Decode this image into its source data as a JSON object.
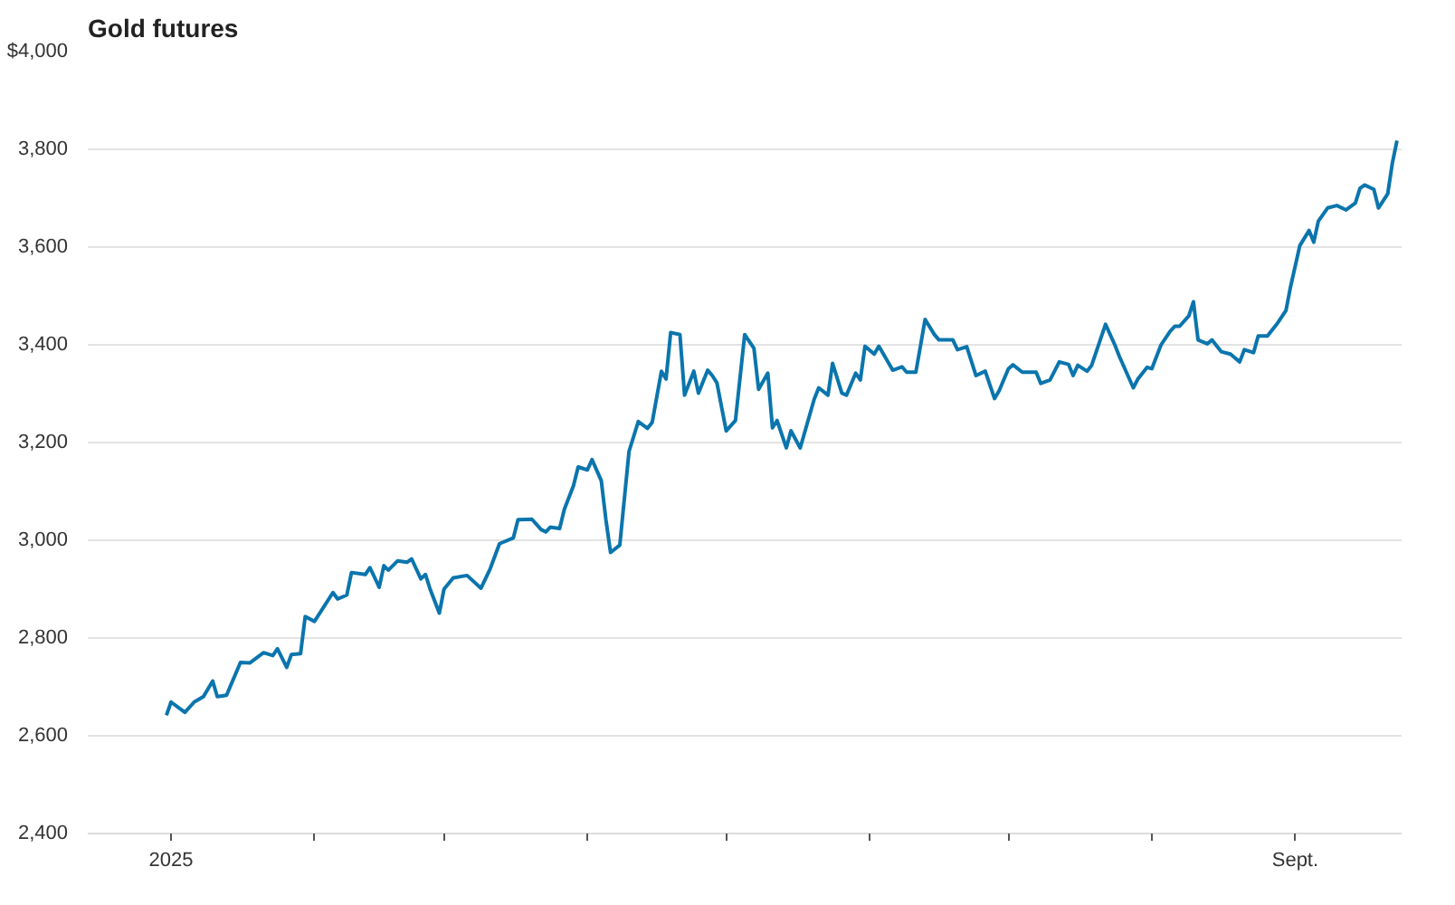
{
  "chart_data": {
    "type": "line",
    "title": "Gold futures",
    "x": [
      "2024-12-31",
      "2025-01-01",
      "2025-01-04",
      "2025-01-06",
      "2025-01-08",
      "2025-01-10",
      "2025-01-11",
      "2025-01-13",
      "2025-01-16",
      "2025-01-18",
      "2025-01-21",
      "2025-01-23",
      "2025-01-24",
      "2025-01-26",
      "2025-01-27",
      "2025-01-29",
      "2025-01-30",
      "2025-02-01",
      "2025-02-05",
      "2025-02-06",
      "2025-02-08",
      "2025-02-09",
      "2025-02-12",
      "2025-02-13",
      "2025-02-15",
      "2025-02-16",
      "2025-02-17",
      "2025-02-19",
      "2025-02-21",
      "2025-02-22",
      "2025-02-24",
      "2025-02-25",
      "2025-02-26",
      "2025-02-28",
      "2025-03-01",
      "2025-03-03",
      "2025-03-06",
      "2025-03-09",
      "2025-03-11",
      "2025-03-13",
      "2025-03-16",
      "2025-03-17",
      "2025-03-20",
      "2025-03-22",
      "2025-03-23",
      "2025-03-24",
      "2025-03-26",
      "2025-03-27",
      "2025-03-29",
      "2025-03-30",
      "2025-04-01",
      "2025-04-02",
      "2025-04-04",
      "2025-04-05",
      "2025-04-06",
      "2025-04-08",
      "2025-04-10",
      "2025-04-12",
      "2025-04-14",
      "2025-04-15",
      "2025-04-17",
      "2025-04-18",
      "2025-04-19",
      "2025-04-21",
      "2025-04-22",
      "2025-04-24",
      "2025-04-25",
      "2025-04-27",
      "2025-04-28",
      "2025-04-29",
      "2025-05-01",
      "2025-05-03",
      "2025-05-05",
      "2025-05-07",
      "2025-05-08",
      "2025-05-10",
      "2025-05-11",
      "2025-05-12",
      "2025-05-14",
      "2025-05-15",
      "2025-05-17",
      "2025-05-20",
      "2025-05-21",
      "2025-05-23",
      "2025-05-24",
      "2025-05-26",
      "2025-05-27",
      "2025-05-29",
      "2025-05-30",
      "2025-05-31",
      "2025-06-02",
      "2025-06-03",
      "2025-06-06",
      "2025-06-08",
      "2025-06-09",
      "2025-06-11",
      "2025-06-13",
      "2025-06-15",
      "2025-06-16",
      "2025-06-19",
      "2025-06-20",
      "2025-06-22",
      "2025-06-24",
      "2025-06-26",
      "2025-06-28",
      "2025-06-29",
      "2025-07-01",
      "2025-07-02",
      "2025-07-04",
      "2025-07-07",
      "2025-07-08",
      "2025-07-10",
      "2025-07-12",
      "2025-07-14",
      "2025-07-15",
      "2025-07-16",
      "2025-07-18",
      "2025-07-19",
      "2025-07-22",
      "2025-07-24",
      "2025-07-25",
      "2025-07-28",
      "2025-07-29",
      "2025-07-31",
      "2025-08-01",
      "2025-08-03",
      "2025-08-05",
      "2025-08-06",
      "2025-08-07",
      "2025-08-09",
      "2025-08-10",
      "2025-08-11",
      "2025-08-13",
      "2025-08-14",
      "2025-08-16",
      "2025-08-18",
      "2025-08-20",
      "2025-08-21",
      "2025-08-23",
      "2025-08-24",
      "2025-08-26",
      "2025-08-28",
      "2025-08-30",
      "2025-08-31",
      "2025-09-02",
      "2025-09-04",
      "2025-09-05",
      "2025-09-06",
      "2025-09-08",
      "2025-09-10",
      "2025-09-12",
      "2025-09-14",
      "2025-09-15",
      "2025-09-16",
      "2025-09-18",
      "2025-09-19",
      "2025-09-21",
      "2025-09-22",
      "2025-09-23"
    ],
    "series": [
      {
        "color": "#0a75ad",
        "values": [
          2642,
          2669,
          2648,
          2669,
          2680,
          2712,
          2680,
          2683,
          2750,
          2749,
          2770,
          2764,
          2778,
          2740,
          2766,
          2768,
          2844,
          2834,
          2893,
          2880,
          2888,
          2934,
          2930,
          2944,
          2904,
          2948,
          2939,
          2958,
          2955,
          2962,
          2921,
          2930,
          2900,
          2851,
          2900,
          2923,
          2928,
          2902,
          2942,
          2993,
          3005,
          3042,
          3043,
          3022,
          3017,
          3027,
          3024,
          3063,
          3112,
          3150,
          3144,
          3165,
          3122,
          3042,
          2975,
          2990,
          3182,
          3243,
          3229,
          3241,
          3346,
          3330,
          3425,
          3421,
          3297,
          3346,
          3301,
          3348,
          3337,
          3322,
          3224,
          3245,
          3421,
          3393,
          3309,
          3342,
          3230,
          3245,
          3189,
          3224,
          3189,
          3288,
          3312,
          3297,
          3362,
          3301,
          3297,
          3342,
          3328,
          3397,
          3381,
          3397,
          3348,
          3355,
          3344,
          3344,
          3452,
          3421,
          3410,
          3410,
          3390,
          3396,
          3337,
          3346,
          3290,
          3306,
          3351,
          3359,
          3344,
          3344,
          3321,
          3328,
          3365,
          3360,
          3337,
          3358,
          3346,
          3358,
          3442,
          3400,
          3376,
          3312,
          3330,
          3354,
          3351,
          3400,
          3428,
          3438,
          3438,
          3459,
          3488,
          3410,
          3402,
          3410,
          3386,
          3381,
          3365,
          3390,
          3384,
          3418,
          3418,
          3442,
          3470,
          3519,
          3603,
          3634,
          3610,
          3653,
          3680,
          3685,
          3676,
          3690,
          3720,
          3727,
          3718,
          3680,
          3709,
          3772,
          3818
        ]
      }
    ],
    "xlim": [
      "2024-12-14",
      "2025-09-24"
    ],
    "xticks": [
      {
        "value": "2025-01-01",
        "label": "2025"
      },
      {
        "value": "2025-02-01",
        "label": null
      },
      {
        "value": "2025-03-01",
        "label": null
      },
      {
        "value": "2025-04-01",
        "label": null
      },
      {
        "value": "2025-05-01",
        "label": null
      },
      {
        "value": "2025-06-01",
        "label": null
      },
      {
        "value": "2025-07-01",
        "label": null
      },
      {
        "value": "2025-08-01",
        "label": null
      },
      {
        "value": "2025-09-01",
        "label": "Sept."
      }
    ],
    "ylim": [
      2400,
      4000
    ],
    "yticks": [
      {
        "value": 2400,
        "label": "2,400"
      },
      {
        "value": 2600,
        "label": "2,600"
      },
      {
        "value": 2800,
        "label": "2,800"
      },
      {
        "value": 3000,
        "label": "3,000"
      },
      {
        "value": 3200,
        "label": "3,200"
      },
      {
        "value": 3400,
        "label": "3,400"
      },
      {
        "value": 3600,
        "label": "3,600"
      },
      {
        "value": 3800,
        "label": "3,800"
      },
      {
        "value": 4000,
        "label": "$4,000"
      }
    ],
    "grid": "y",
    "marker": "none",
    "line_style": "solid"
  }
}
